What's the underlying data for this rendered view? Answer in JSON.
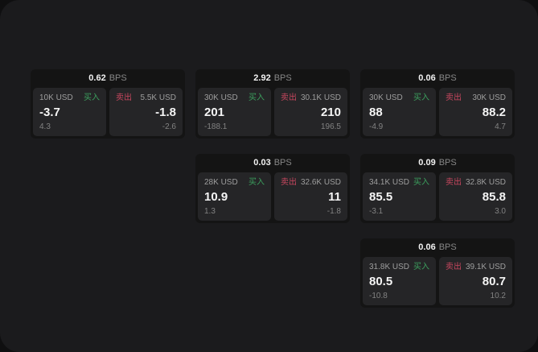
{
  "labels": {
    "buy": "买入",
    "sell": "卖出",
    "bps_unit": "BPS"
  },
  "colors": {
    "page_background": "#1b1b1d",
    "card_background": "#141414",
    "panel_background": "#252527",
    "buy_green": "#3ca05e",
    "sell_red": "#c8475f",
    "value_white": "#f5f5f5",
    "label_gray": "#9e9e9e",
    "sub_gray": "#828282"
  },
  "cards": [
    {
      "bps": "0.62",
      "buy": {
        "amount": "10K USD",
        "value": "-3.7",
        "sub": "4.3"
      },
      "sell": {
        "amount": "5.5K USD",
        "value": "-1.8",
        "sub": "-2.6"
      }
    },
    {
      "bps": "2.92",
      "buy": {
        "amount": "30K USD",
        "value": "201",
        "sub": "-188.1"
      },
      "sell": {
        "amount": "30.1K USD",
        "value": "210",
        "sub": "196.5"
      }
    },
    {
      "bps": "0.06",
      "buy": {
        "amount": "30K USD",
        "value": "88",
        "sub": "-4.9"
      },
      "sell": {
        "amount": "30K USD",
        "value": "88.2",
        "sub": "4.7"
      }
    },
    {
      "bps": "0.03",
      "buy": {
        "amount": "28K USD",
        "value": "10.9",
        "sub": "1.3"
      },
      "sell": {
        "amount": "32.6K USD",
        "value": "11",
        "sub": "-1.8"
      }
    },
    {
      "bps": "0.09",
      "buy": {
        "amount": "34.1K USD",
        "value": "85.5",
        "sub": "-3.1"
      },
      "sell": {
        "amount": "32.8K USD",
        "value": "85.8",
        "sub": "3.0"
      }
    },
    {
      "bps": "0.06",
      "buy": {
        "amount": "31.8K USD",
        "value": "80.5",
        "sub": "-10.8"
      },
      "sell": {
        "amount": "39.1K USD",
        "value": "80.7",
        "sub": "10.2"
      }
    }
  ]
}
